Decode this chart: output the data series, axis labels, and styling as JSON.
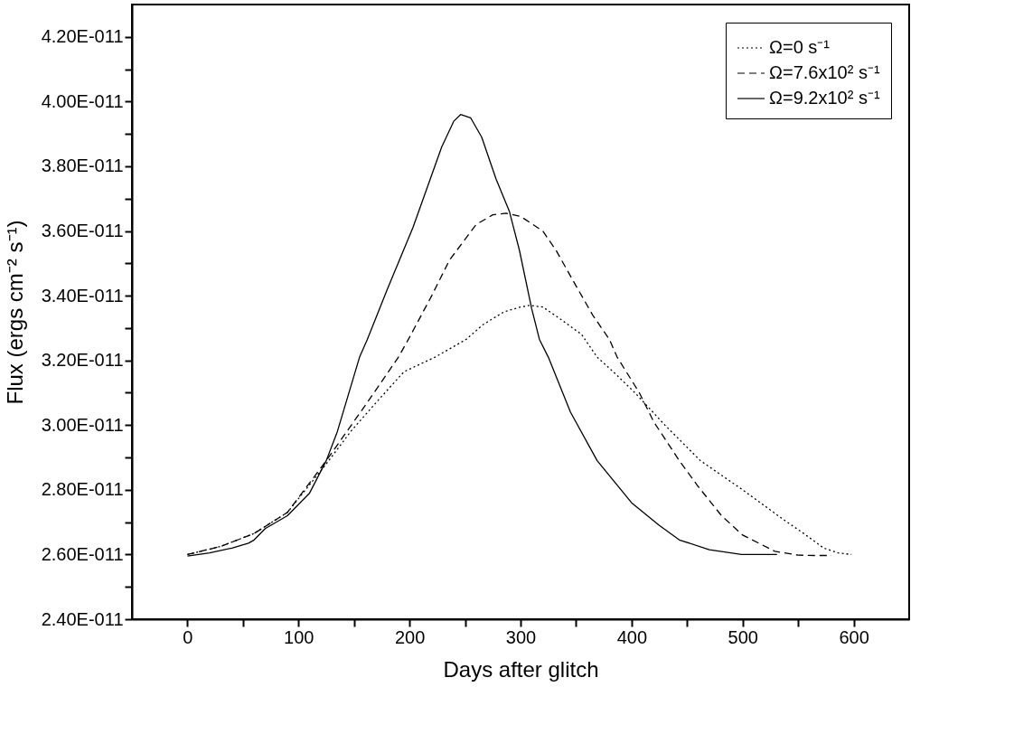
{
  "chart_data": {
    "type": "line",
    "xlabel": "Days after glitch",
    "ylabel": "Flux (ergs cm⁻² s⁻¹)",
    "xlim": [
      -50,
      650
    ],
    "xticks": [
      0,
      {
        "value": 50,
        "label": null
      },
      100,
      {
        "value": 150,
        "label": null
      },
      200,
      {
        "value": 250,
        "label": null
      },
      300,
      {
        "value": 350,
        "label": null
      },
      400,
      {
        "value": 450,
        "label": null
      },
      500,
      {
        "value": 550,
        "label": null
      },
      600
    ],
    "ylim": [
      2.4e-11,
      4.3e-11
    ],
    "yticks": [
      {
        "value": 2.4e-11,
        "label": "2.40E-011"
      },
      {
        "value": 2.5e-11,
        "label": null
      },
      {
        "value": 2.6e-11,
        "label": "2.60E-011"
      },
      {
        "value": 2.7e-11,
        "label": null
      },
      {
        "value": 2.8e-11,
        "label": "2.80E-011"
      },
      {
        "value": 2.9e-11,
        "label": null
      },
      {
        "value": 3e-11,
        "label": "3.00E-011"
      },
      {
        "value": 3.1e-11,
        "label": null
      },
      {
        "value": 3.2e-11,
        "label": "3.20E-011"
      },
      {
        "value": 3.3e-11,
        "label": null
      },
      {
        "value": 3.4e-11,
        "label": "3.40E-011"
      },
      {
        "value": 3.5e-11,
        "label": null
      },
      {
        "value": 3.6e-11,
        "label": "3.60E-011"
      },
      {
        "value": 3.7e-11,
        "label": null
      },
      {
        "value": 3.8e-11,
        "label": "3.80E-011"
      },
      {
        "value": 3.9e-11,
        "label": null
      },
      {
        "value": 4e-11,
        "label": "4.00E-011"
      },
      {
        "value": 4.1e-11,
        "label": null
      },
      {
        "value": 4.2e-11,
        "label": "4.20E-011"
      }
    ],
    "grid": false,
    "legend": "top right",
    "marker": "none",
    "series": [
      {
        "name": "Ω=0 s⁻¹",
        "color": "#000000",
        "line_style": "dotted",
        "x": [
          0,
          30,
          60,
          90,
          125,
          147,
          170,
          195,
          223,
          251,
          266,
          285,
          300,
          308,
          320,
          335,
          355,
          369,
          385,
          403,
          430,
          462,
          500,
          536,
          555,
          573,
          586,
          598
        ],
        "values": [
          2.6e-11,
          2.625e-11,
          2.665e-11,
          2.73e-11,
          2.88e-11,
          2.98e-11,
          3.07e-11,
          3.165e-11,
          3.21e-11,
          3.265e-11,
          3.31e-11,
          3.35e-11,
          3.365e-11,
          3.37e-11,
          3.365e-11,
          3.33e-11,
          3.28e-11,
          3.21e-11,
          3.16e-11,
          3.1e-11,
          3e-11,
          2.89e-11,
          2.8e-11,
          2.71e-11,
          2.665e-11,
          2.62e-11,
          2.605e-11,
          2.6e-11
        ]
      },
      {
        "name": "Ω=7.6x10² s⁻¹",
        "color": "#000000",
        "line_style": "dashed",
        "x": [
          0,
          30,
          60,
          90,
          125,
          162,
          190,
          199,
          220,
          236,
          260,
          275,
          287,
          300,
          320,
          332,
          350,
          365,
          380,
          387,
          407,
          420,
          443,
          460,
          481,
          500,
          529,
          550,
          565,
          580
        ],
        "values": [
          2.6e-11,
          2.625e-11,
          2.665e-11,
          2.73e-11,
          2.89e-11,
          3.07e-11,
          3.21e-11,
          3.265e-11,
          3.4e-11,
          3.51e-11,
          3.62e-11,
          3.65e-11,
          3.655e-11,
          3.645e-11,
          3.6e-11,
          3.54e-11,
          3.43e-11,
          3.34e-11,
          3.265e-11,
          3.21e-11,
          3.1e-11,
          3.01e-11,
          2.89e-11,
          2.81e-11,
          2.72e-11,
          2.66e-11,
          2.61e-11,
          2.598e-11,
          2.597e-11,
          2.597e-11
        ]
      },
      {
        "name": "Ω=9.2x10² s⁻¹",
        "color": "#000000",
        "line_style": "solid",
        "x": [
          0,
          20,
          40,
          55,
          60,
          70,
          90,
          110,
          125,
          135,
          155,
          162,
          180,
          203,
          229,
          240,
          246,
          255,
          265,
          278,
          290,
          299,
          310,
          317,
          325,
          345,
          369,
          400,
          425,
          443,
          470,
          499,
          531
        ],
        "values": [
          2.595e-11,
          2.605e-11,
          2.62e-11,
          2.635e-11,
          2.645e-11,
          2.68e-11,
          2.72e-11,
          2.79e-11,
          2.89e-11,
          2.98e-11,
          3.21e-11,
          3.265e-11,
          3.42e-11,
          3.61e-11,
          3.86e-11,
          3.94e-11,
          3.96e-11,
          3.95e-11,
          3.89e-11,
          3.76e-11,
          3.66e-11,
          3.54e-11,
          3.36e-11,
          3.265e-11,
          3.21e-11,
          3.04e-11,
          2.89e-11,
          2.76e-11,
          2.69e-11,
          2.645e-11,
          2.615e-11,
          2.6e-11,
          2.6e-11
        ]
      }
    ]
  }
}
